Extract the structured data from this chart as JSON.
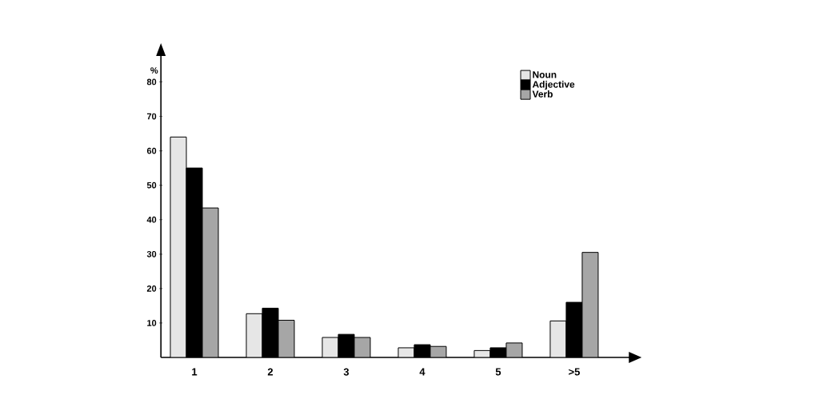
{
  "chart_data": {
    "type": "bar",
    "ylabel": "%",
    "categories": [
      "1",
      "2",
      "3",
      "4",
      "5",
      ">5"
    ],
    "series": [
      {
        "name": "Noun",
        "color": "#e6e6e6",
        "values": [
          64,
          12.7,
          5.8,
          2.8,
          2,
          10.6
        ]
      },
      {
        "name": "Adjective",
        "color": "#000000",
        "values": [
          55,
          14.3,
          6.7,
          3.7,
          2.8,
          16
        ]
      },
      {
        "name": "Verb",
        "color": "#a6a6a6",
        "values": [
          43.4,
          10.8,
          5.8,
          3.2,
          4.2,
          30.5
        ]
      }
    ],
    "ylim": [
      0,
      88
    ],
    "yticks": [
      10,
      20,
      30,
      40,
      50,
      60,
      70,
      80
    ],
    "grid": false,
    "legend": "top right"
  }
}
